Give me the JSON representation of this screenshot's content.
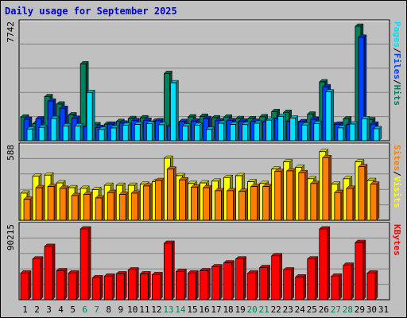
{
  "chart_data": {
    "type": "bar",
    "title": "Daily usage for September 2025",
    "categories": [
      "1",
      "2",
      "3",
      "4",
      "5",
      "6",
      "7",
      "8",
      "9",
      "10",
      "11",
      "12",
      "13",
      "14",
      "15",
      "16",
      "17",
      "18",
      "19",
      "20",
      "21",
      "22",
      "23",
      "24",
      "25",
      "26",
      "27",
      "28",
      "29",
      "30",
      "31"
    ],
    "weekend_days": [
      "6",
      "7",
      "13",
      "14",
      "20",
      "21",
      "27",
      "28"
    ],
    "grid": true,
    "colors": {
      "title": "#0000cc",
      "weekday_label": "#000000",
      "weekend_label": "#00805c",
      "background": "#c0c0c0",
      "gridline": "#808080"
    },
    "panels": [
      {
        "id": "hits-files-pages",
        "scale_label": "7742",
        "ylim": [
          0,
          7742
        ],
        "axis_label_parts": [
          {
            "text": "Pages",
            "color": "#00e0ff"
          },
          {
            "text": "/",
            "color": "#000000"
          },
          {
            "text": "Files",
            "color": "#0040ff"
          },
          {
            "text": "/",
            "color": "#000000"
          },
          {
            "text": "Hits",
            "color": "#00805c"
          }
        ],
        "series": [
          {
            "name": "Hits",
            "color": "#00805c",
            "values": [
              1600,
              1150,
              2980,
              2480,
              1750,
              5200,
              1080,
              1120,
              1300,
              1500,
              1550,
              1320,
              4550,
              1080,
              1610,
              1650,
              1550,
              1600,
              1500,
              1490,
              1620,
              1970,
              1920,
              1160,
              1800,
              3980,
              1080,
              1480,
              7742,
              1420,
              null
            ]
          },
          {
            "name": "Files",
            "color": "#0040ff",
            "values": [
              1450,
              1480,
              2680,
              2190,
              1520,
              950,
              900,
              1120,
              1190,
              1360,
              1380,
              1350,
              1000,
              1300,
              1330,
              1500,
              1350,
              1360,
              1330,
              1320,
              1280,
              1500,
              1320,
              1290,
              1450,
              3650,
              1120,
              1100,
              7000,
              1120,
              null
            ]
          },
          {
            "name": "Pages",
            "color": "#00e0ff",
            "values": [
              790,
              900,
              1500,
              1000,
              1000,
              3260,
              760,
              860,
              1050,
              1100,
              1150,
              1080,
              3920,
              990,
              1050,
              770,
              1180,
              1100,
              1090,
              1180,
              1390,
              1650,
              1530,
              1060,
              1160,
              3300,
              870,
              1130,
              1480,
              810,
              null
            ]
          }
        ]
      },
      {
        "id": "visits-sites",
        "scale_label": "588",
        "ylim": [
          0,
          588
        ],
        "axis_label_parts": [
          {
            "text": "Sites",
            "color": "#ff8000"
          },
          {
            "text": "/",
            "color": "#000000"
          },
          {
            "text": "Visits",
            "color": "#ffff00"
          }
        ],
        "series": [
          {
            "name": "Visits",
            "color": "#ffff00",
            "values": [
              225,
              365,
              375,
              310,
              270,
              265,
              255,
              290,
              290,
              290,
              300,
              320,
              515,
              370,
              305,
              310,
              325,
              355,
              370,
              320,
              305,
              425,
              485,
              440,
              345,
              570,
              300,
              345,
              485,
              330,
              null
            ]
          },
          {
            "name": "Sites",
            "color": "#ff8000",
            "values": [
              175,
              270,
              280,
              265,
              205,
              215,
              185,
              230,
              215,
              225,
              285,
              330,
              425,
              335,
              275,
              270,
              245,
              245,
              240,
              280,
              280,
              405,
              410,
              395,
              305,
              520,
              230,
              265,
              445,
              300,
              null
            ]
          }
        ]
      },
      {
        "id": "kbytes",
        "scale_label": "90215",
        "ylim": [
          0,
          90215
        ],
        "axis_label_parts": [
          {
            "text": "KBytes",
            "color": "#ff0000"
          }
        ],
        "series": [
          {
            "name": "KBytes",
            "color": "#ff0000",
            "values": [
              34000,
              52000,
              68000,
              37000,
              34000,
              90215,
              28000,
              30000,
              33000,
              38000,
              33000,
              32000,
              72000,
              36000,
              34000,
              37000,
              42000,
              47000,
              52000,
              34000,
              41000,
              56000,
              38000,
              29000,
              52000,
              90215,
              30000,
              44000,
              73000,
              34000,
              null
            ]
          }
        ]
      }
    ]
  }
}
